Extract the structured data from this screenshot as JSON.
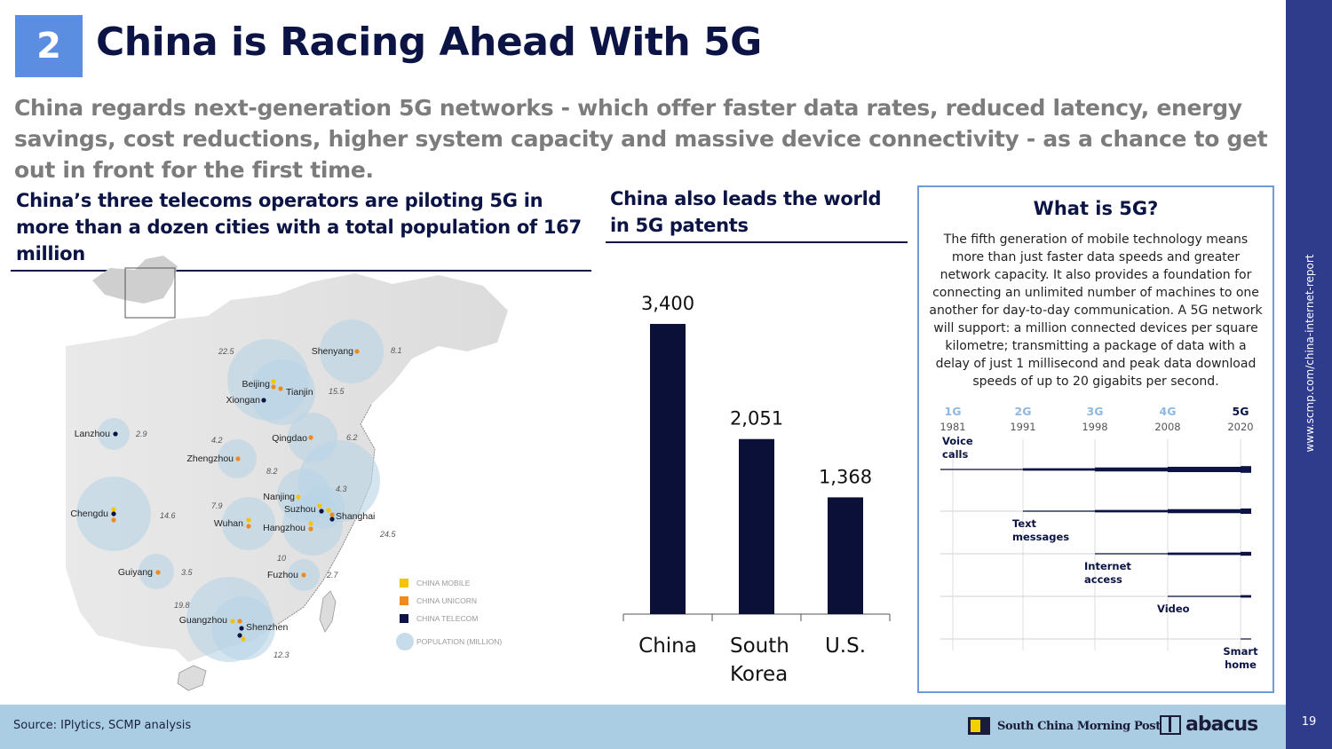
{
  "slide": {
    "number": "2",
    "title": "China is Racing Ahead With 5G",
    "subtitle": "China regards next-generation 5G networks - which offer faster data rates, reduced latency, energy savings, cost reductions, higher system capacity and massive device connectivity - as a chance to get out in front for the first time.",
    "page_number": "19",
    "side_url": "www.scmp.com/china-internet-report"
  },
  "map_section": {
    "heading": "China’s three telecoms operators are piloting 5G in more than a dozen cities with a total population of 167 million",
    "cities": [
      {
        "name": "Shenyang",
        "pop": "8.1"
      },
      {
        "name": "Beijing",
        "pop": "22.5"
      },
      {
        "name": "Tianjin",
        "pop": "15.5"
      },
      {
        "name": "Xiongan",
        "pop": ""
      },
      {
        "name": "Lanzhou",
        "pop": "2.9"
      },
      {
        "name": "Qingdao",
        "pop": "6.2"
      },
      {
        "name": "Zhengzhou",
        "pop": "4.2"
      },
      {
        "name": "Nanjing",
        "pop": "8.2"
      },
      {
        "name": "Suzhou",
        "pop": "4.3"
      },
      {
        "name": "Shanghai",
        "pop": "24.5"
      },
      {
        "name": "Chengdu",
        "pop": "14.6"
      },
      {
        "name": "Wuhan",
        "pop": "7.9"
      },
      {
        "name": "Hangzhou",
        "pop": "10"
      },
      {
        "name": "Guiyang",
        "pop": "3.5"
      },
      {
        "name": "Fuzhou",
        "pop": "2.7"
      },
      {
        "name": "Guangzhou",
        "pop": "19.8"
      },
      {
        "name": "Shenzhen",
        "pop": "12.3"
      }
    ],
    "legend": [
      {
        "label": "CHINA MOBILE",
        "color": "#f5c400"
      },
      {
        "label": "CHINA UNICORN",
        "color": "#f08a1c"
      },
      {
        "label": "CHINA TELECOM",
        "color": "#0b1444"
      },
      {
        "label": "POPULATION (MILLION)",
        "color": "#c6dceb"
      }
    ]
  },
  "patents_section": {
    "heading_line1": "China also leads the world",
    "heading_line2": "in 5G patents"
  },
  "chart_data": {
    "type": "bar",
    "title": "China also leads the world in 5G patents",
    "categories": [
      "China",
      "South Korea",
      "U.S."
    ],
    "category_lines": [
      [
        "China"
      ],
      [
        "South",
        "Korea"
      ],
      [
        "U.S."
      ]
    ],
    "values": [
      3400,
      2051,
      1368
    ],
    "value_labels": [
      "3,400",
      "2,051",
      "1,368"
    ],
    "ylim": [
      0,
      3400
    ],
    "bar_color": "#0b1038",
    "xlabel": "",
    "ylabel": ""
  },
  "info_box": {
    "title": "What is 5G?",
    "body": "The fifth generation of mobile technology means more than just faster data speeds and greater network capacity. It also provides a foundation for connecting an unlimited number of machines to one another for day-to-day communication. A 5G network will support: a million connected devices per square kilometre; transmitting a package of data with a delay of just 1 millisecond and peak data download speeds of up to 20 gigabits per second.",
    "generations": [
      {
        "gen": "1G",
        "year": "1981"
      },
      {
        "gen": "2G",
        "year": "1991"
      },
      {
        "gen": "3G",
        "year": "1998"
      },
      {
        "gen": "4G",
        "year": "2008"
      },
      {
        "gen": "5G",
        "year": "2020"
      }
    ],
    "capabilities": [
      {
        "label_lines": [
          "Voice",
          "calls"
        ],
        "start_gen": 1
      },
      {
        "label_lines": [
          "Text",
          "messages"
        ],
        "start_gen": 2
      },
      {
        "label_lines": [
          "Internet",
          "access"
        ],
        "start_gen": 3
      },
      {
        "label_lines": [
          "Video"
        ],
        "start_gen": 4
      },
      {
        "label_lines": [
          "Smart",
          "home"
        ],
        "start_gen": 5
      }
    ]
  },
  "footer": {
    "source": "Source: IPlytics, SCMP analysis",
    "scmp_logo_text": "South China Morning Post",
    "abacus_logo_text": "abacus"
  }
}
